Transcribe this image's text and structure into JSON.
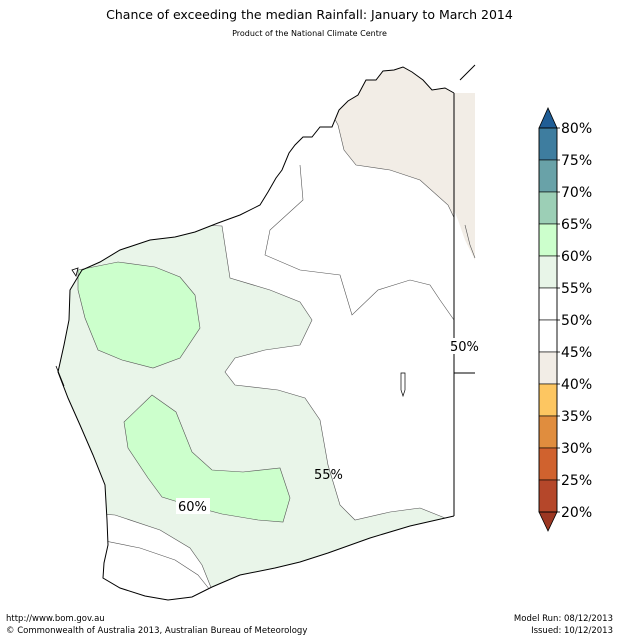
{
  "title": "Chance of exceeding the median Rainfall: January to March 2014",
  "subtitle": "Product of the National Climate Centre",
  "footer": {
    "url": "http://www.bom.gov.au",
    "copyright": "©  Commonwealth of Australia 2013, Australian Bureau of Meteorology",
    "model_run": "Model Run: 08/12/2013",
    "issued": "Issued: 10/12/2013"
  },
  "map_labels": [
    "50%",
    "55%",
    "60%"
  ],
  "legend": {
    "ticks": [
      "80%",
      "75%",
      "70%",
      "65%",
      "60%",
      "55%",
      "50%",
      "45%",
      "40%",
      "35%",
      "30%",
      "25%",
      "20%"
    ],
    "colors_top_to_bottom": [
      "#1f5d95",
      "#3e7d9f",
      "#69a2a8",
      "#9ccfb6",
      "#ccffcc",
      "#e8f5e8",
      "#ffffff",
      "#ffffff",
      "#f2ede6",
      "#fdc661",
      "#e08d3e",
      "#d0622e",
      "#b5472a",
      "#9c3722"
    ]
  },
  "region_colors": {
    "p45_50": "#f2ede6",
    "p50_55": "#ffffff",
    "p55_60": "#e9f5e9",
    "p60_65": "#ccffcc"
  }
}
